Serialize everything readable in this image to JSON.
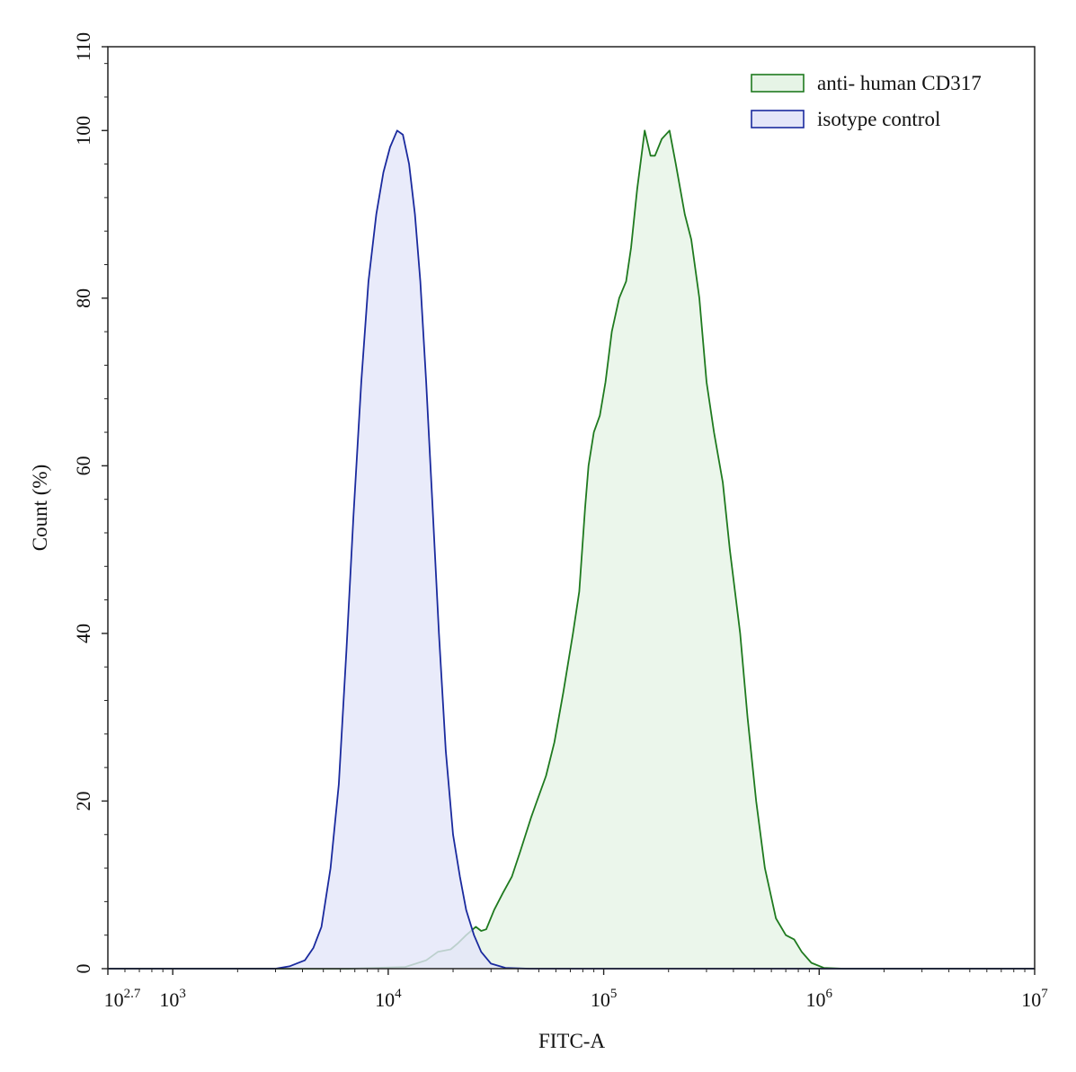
{
  "chart_data": {
    "type": "area",
    "title": "",
    "xlabel": "FITC-A",
    "ylabel": "Count  (%)",
    "x_scale": "log10",
    "xlim": [
      500,
      10000000
    ],
    "ylim": [
      0,
      110
    ],
    "grid": false,
    "legend_position": "top-right",
    "x_ticks": [
      {
        "value": 500,
        "base": "10",
        "exp": "2.7"
      },
      {
        "value": 1000,
        "base": "10",
        "exp": "3"
      },
      {
        "value": 10000,
        "base": "10",
        "exp": "4"
      },
      {
        "value": 100000,
        "base": "10",
        "exp": "5"
      },
      {
        "value": 1000000,
        "base": "10",
        "exp": "6"
      },
      {
        "value": 10000000,
        "base": "10",
        "exp": "7"
      }
    ],
    "y_ticks": [
      {
        "value": 0,
        "label": "0"
      },
      {
        "value": 20,
        "label": "20"
      },
      {
        "value": 40,
        "label": "40"
      },
      {
        "value": 60,
        "label": "60"
      },
      {
        "value": 80,
        "label": "80"
      },
      {
        "value": 100,
        "label": "100"
      },
      {
        "value": 110,
        "label": "110"
      }
    ],
    "series": [
      {
        "name": "anti- human CD317",
        "stroke": "#1f7a1f",
        "fill": "#e6f4e6",
        "points": [
          [
            500,
            0
          ],
          [
            6500,
            0
          ],
          [
            12000,
            0.2
          ],
          [
            15000,
            1
          ],
          [
            17000,
            2
          ],
          [
            19500,
            2.3
          ],
          [
            21000,
            3
          ],
          [
            23000,
            4
          ],
          [
            25500,
            5
          ],
          [
            27000,
            4.5
          ],
          [
            28500,
            4.7
          ],
          [
            31000,
            7
          ],
          [
            34000,
            9
          ],
          [
            37500,
            11
          ],
          [
            41000,
            14
          ],
          [
            46000,
            18
          ],
          [
            49000,
            20
          ],
          [
            54000,
            23
          ],
          [
            59000,
            27
          ],
          [
            65000,
            33
          ],
          [
            72000,
            40
          ],
          [
            77000,
            45
          ],
          [
            82000,
            55
          ],
          [
            85000,
            60
          ],
          [
            90000,
            64
          ],
          [
            96000,
            66
          ],
          [
            102000,
            70
          ],
          [
            109000,
            76
          ],
          [
            118000,
            80
          ],
          [
            127000,
            82
          ],
          [
            134000,
            86
          ],
          [
            143000,
            93
          ],
          [
            155000,
            100
          ],
          [
            165000,
            97
          ],
          [
            173000,
            97
          ],
          [
            186000,
            99
          ],
          [
            202000,
            100
          ],
          [
            216000,
            96
          ],
          [
            238000,
            90
          ],
          [
            255000,
            87
          ],
          [
            278000,
            80
          ],
          [
            300000,
            70
          ],
          [
            325000,
            64
          ],
          [
            357000,
            58
          ],
          [
            385000,
            50
          ],
          [
            430000,
            40
          ],
          [
            465000,
            30
          ],
          [
            510000,
            20
          ],
          [
            560000,
            12
          ],
          [
            630000,
            6
          ],
          [
            700000,
            4
          ],
          [
            765000,
            3.5
          ],
          [
            830000,
            2
          ],
          [
            920000,
            0.7
          ],
          [
            1050000,
            0.1
          ],
          [
            1300000,
            0
          ],
          [
            10000000,
            0
          ]
        ]
      },
      {
        "name": "isotype control",
        "stroke": "#1a2a9e",
        "fill": "#e4e6f9",
        "points": [
          [
            500,
            0
          ],
          [
            3000,
            0
          ],
          [
            3500,
            0.3
          ],
          [
            4100,
            1
          ],
          [
            4500,
            2.5
          ],
          [
            4900,
            5
          ],
          [
            5400,
            12
          ],
          [
            5900,
            22
          ],
          [
            6400,
            38
          ],
          [
            6900,
            54
          ],
          [
            7500,
            70
          ],
          [
            8100,
            82
          ],
          [
            8800,
            90
          ],
          [
            9500,
            95
          ],
          [
            10200,
            98
          ],
          [
            11000,
            100
          ],
          [
            11700,
            99.5
          ],
          [
            12500,
            96
          ],
          [
            13300,
            90
          ],
          [
            14100,
            82
          ],
          [
            15000,
            70
          ],
          [
            16000,
            56
          ],
          [
            17200,
            40
          ],
          [
            18500,
            26
          ],
          [
            20000,
            16
          ],
          [
            21500,
            11
          ],
          [
            23000,
            7
          ],
          [
            25000,
            4
          ],
          [
            27000,
            2
          ],
          [
            30000,
            0.6
          ],
          [
            35000,
            0.1
          ],
          [
            45000,
            0
          ],
          [
            10000000,
            0
          ]
        ]
      }
    ]
  }
}
